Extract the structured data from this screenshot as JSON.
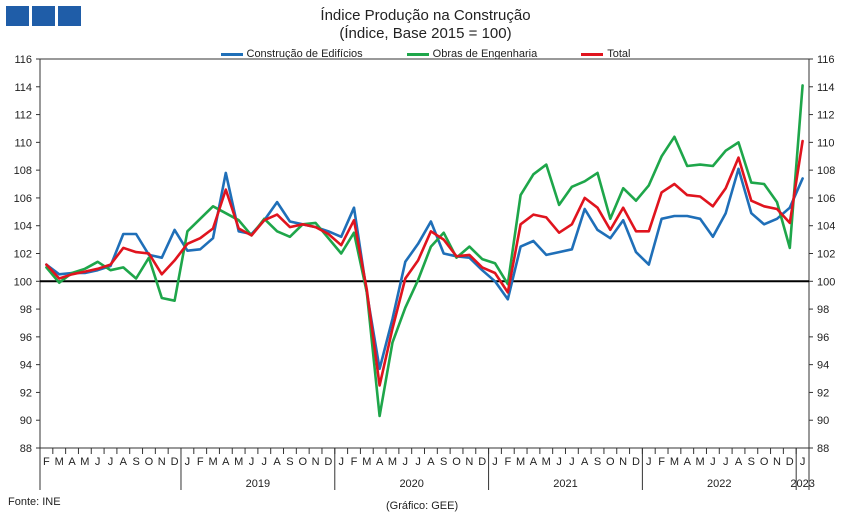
{
  "header": {
    "logo": "logo",
    "title_line1": "Índice Produção na Construção",
    "title_line2": "(Índice, Base 2015 = 100)"
  },
  "footer": {
    "source": "Fonte: INE",
    "credit": "(Gráfico: GEE)"
  },
  "chart_data": {
    "type": "line",
    "title": "Índice Produção na Construção",
    "subtitle": "(Índice, Base 2015 = 100)",
    "ylim": [
      88,
      116
    ],
    "y_ticks": [
      88,
      90,
      92,
      94,
      96,
      98,
      100,
      102,
      104,
      106,
      108,
      110,
      112,
      114,
      116
    ],
    "reference_line": 100,
    "legend_position": "top-center",
    "grid": false,
    "x_month_labels": [
      "F",
      "M",
      "A",
      "M",
      "J",
      "J",
      "A",
      "S",
      "O",
      "N",
      "D",
      "J",
      "F",
      "M",
      "A",
      "M",
      "J",
      "J",
      "A",
      "S",
      "O",
      "N",
      "D",
      "J",
      "F",
      "M",
      "A",
      "M",
      "J",
      "J",
      "A",
      "S",
      "O",
      "N",
      "D",
      "J",
      "F",
      "M",
      "A",
      "M",
      "J",
      "J",
      "A",
      "S",
      "O",
      "N",
      "D",
      "J",
      "F",
      "M",
      "A",
      "M",
      "J",
      "J",
      "A",
      "S",
      "O",
      "N",
      "D",
      "J"
    ],
    "x_year_groups": [
      {
        "label": "2019",
        "start": 11,
        "end": 22
      },
      {
        "label": "2020",
        "start": 23,
        "end": 34
      },
      {
        "label": "2021",
        "start": 35,
        "end": 46
      },
      {
        "label": "2022",
        "start": 47,
        "end": 58
      },
      {
        "label": "2023",
        "start": 59,
        "end": 59
      }
    ],
    "series": [
      {
        "name": "Construção de Edifícios",
        "color": "#1f6fb8",
        "values": [
          101.2,
          100.5,
          100.6,
          100.6,
          100.8,
          101.1,
          103.4,
          103.4,
          101.9,
          101.7,
          103.7,
          102.2,
          102.3,
          103.1,
          107.8,
          103.6,
          103.4,
          104.4,
          105.7,
          104.3,
          104.1,
          103.9,
          103.6,
          103.2,
          105.3,
          99.2,
          93.7,
          97.3,
          101.4,
          102.7,
          104.3,
          102.0,
          101.8,
          101.7,
          100.8,
          100.0,
          98.7,
          102.5,
          102.9,
          101.9,
          102.1,
          102.3,
          105.2,
          103.7,
          103.1,
          104.4,
          102.1,
          101.2,
          104.5,
          104.7,
          104.7,
          104.5,
          103.2,
          104.9,
          108.1,
          104.9,
          104.1,
          104.5,
          105.3,
          107.4
        ]
      },
      {
        "name": "Obras de Engenharia",
        "color": "#1ea64a",
        "values": [
          101.0,
          99.9,
          100.6,
          100.9,
          101.4,
          100.8,
          101.0,
          100.2,
          101.7,
          98.8,
          98.6,
          103.6,
          104.5,
          105.4,
          104.9,
          104.4,
          103.3,
          104.5,
          103.6,
          103.2,
          104.1,
          104.2,
          103.1,
          102.0,
          103.5,
          99.2,
          90.3,
          95.6,
          98.1,
          100.1,
          102.5,
          103.5,
          101.7,
          102.5,
          101.6,
          101.3,
          99.8,
          106.2,
          107.7,
          108.4,
          105.5,
          106.8,
          107.2,
          107.8,
          104.5,
          106.7,
          105.8,
          106.9,
          109.0,
          110.4,
          108.3,
          108.4,
          108.3,
          109.4,
          110.0,
          107.1,
          107.0,
          105.7,
          102.4,
          114.1
        ]
      },
      {
        "name": "Total",
        "color": "#e0141e",
        "values": [
          101.2,
          100.2,
          100.5,
          100.7,
          100.9,
          101.2,
          102.4,
          102.1,
          102.0,
          100.5,
          101.5,
          102.7,
          103.1,
          103.8,
          106.6,
          103.8,
          103.3,
          104.4,
          104.8,
          103.9,
          104.1,
          103.9,
          103.4,
          102.6,
          104.4,
          99.4,
          92.5,
          96.6,
          100.2,
          101.5,
          103.6,
          103.0,
          101.8,
          101.9,
          101.0,
          100.6,
          99.2,
          104.1,
          104.8,
          104.6,
          103.5,
          104.1,
          106.0,
          105.3,
          103.7,
          105.3,
          103.6,
          103.6,
          106.4,
          107.0,
          106.2,
          106.1,
          105.4,
          106.7,
          108.9,
          105.8,
          105.4,
          105.2,
          104.2,
          110.1
        ]
      }
    ]
  }
}
